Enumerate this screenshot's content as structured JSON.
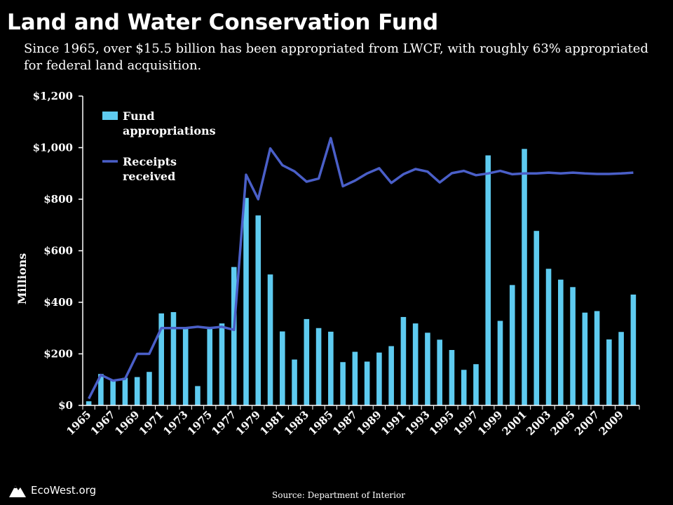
{
  "title": "Land and Water Conservation Fund",
  "subtitle": "Since 1965, over $15.5 billion has been appropriated from LWCF, with roughly 63% appropriated for federal land acquisition.",
  "source": "Source: Department of Interior",
  "logo_text": "EcoWest.org",
  "colors": {
    "bars": "#5ecbf0",
    "line": "#4a5fc8",
    "background": "#000000",
    "text": "#ffffff"
  },
  "chart_data": {
    "type": "bar",
    "ylabel": "Millions",
    "ylim": [
      0,
      1200
    ],
    "yticks": [
      0,
      200,
      400,
      600,
      800,
      1000,
      1200
    ],
    "ytick_labels": [
      "$0",
      "$200",
      "$400",
      "$600",
      "$800",
      "$1,000",
      "$1,200"
    ],
    "legend_position": "top-left",
    "x": [
      1965,
      1966,
      1967,
      1968,
      1969,
      1970,
      1971,
      1972,
      1973,
      1974,
      1975,
      1976,
      1977,
      1978,
      1979,
      1980,
      1981,
      1982,
      1983,
      1984,
      1985,
      1986,
      1987,
      1988,
      1989,
      1990,
      1991,
      1992,
      1993,
      1994,
      1995,
      1996,
      1997,
      1998,
      1999,
      2000,
      2001,
      2002,
      2003,
      2004,
      2005,
      2006,
      2007,
      2008,
      2009,
      2010
    ],
    "xtick_labels": [
      "1965",
      "1967",
      "1969",
      "1971",
      "1973",
      "1975",
      "1977",
      "1979",
      "1981",
      "1983",
      "1985",
      "1987",
      "1989",
      "1991",
      "1993",
      "1995",
      "1997",
      "1999",
      "2001",
      "2003",
      "2005",
      "2007",
      "2009"
    ],
    "series": [
      {
        "name": "Fund appropriations",
        "type": "bar",
        "values": [
          16,
          122,
          96,
          107,
          110,
          130,
          357,
          362,
          300,
          75,
          305,
          318,
          537,
          805,
          737,
          508,
          287,
          178,
          335,
          300,
          286,
          168,
          208,
          170,
          205,
          230,
          343,
          318,
          282,
          255,
          215,
          138,
          160,
          970,
          328,
          467,
          995,
          677,
          530,
          488,
          459,
          360,
          366,
          256,
          285,
          430
        ]
      },
      {
        "name": "Receipts received",
        "type": "line",
        "values": [
          26,
          118,
          96,
          103,
          200,
          200,
          300,
          300,
          300,
          305,
          300,
          305,
          293,
          895,
          800,
          997,
          932,
          908,
          868,
          880,
          1037,
          850,
          872,
          900,
          920,
          863,
          897,
          917,
          907,
          865,
          901,
          910,
          893,
          900,
          910,
          897,
          900,
          900,
          903,
          900,
          903,
          900,
          898,
          898,
          900,
          903
        ]
      }
    ]
  }
}
